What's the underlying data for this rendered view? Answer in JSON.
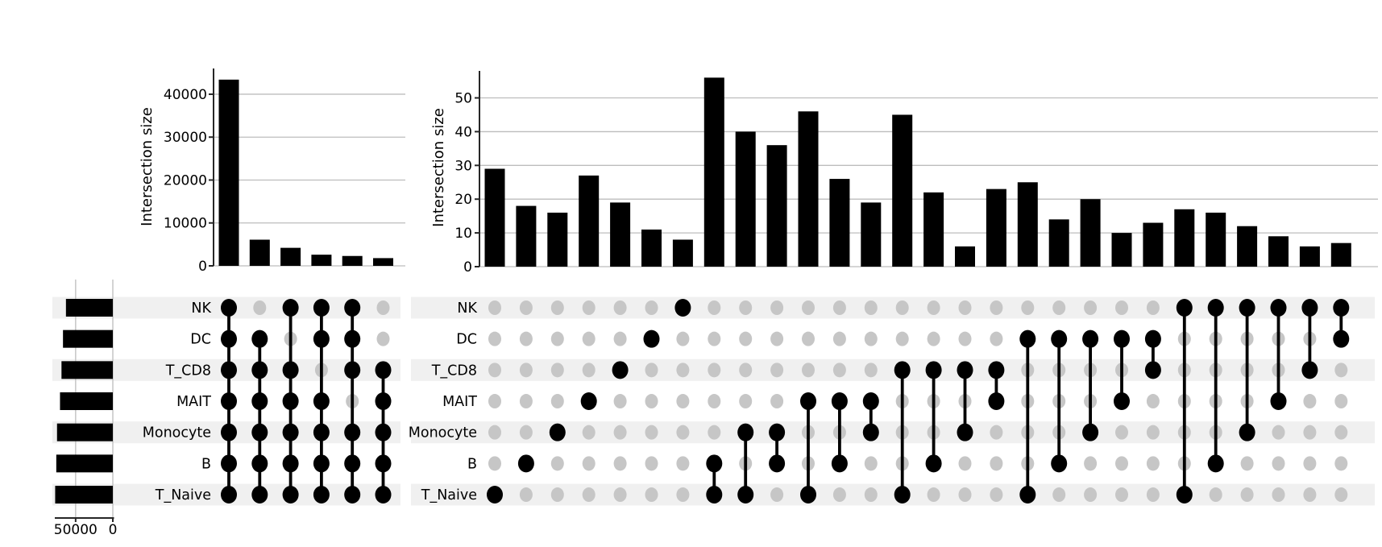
{
  "figure": {
    "description": "Two UpSet plots of immune cell type intersections",
    "left_ylabel": "Intersection size",
    "right_ylabel": "Intersection size"
  },
  "colors": {
    "bar": "#000000",
    "dot_active": "#000000",
    "dot_inactive": "#c6c6c6",
    "band": "#f0f0f0",
    "grid": "#bdbdbd",
    "axis": "#262626",
    "text": "#000000",
    "background": "#ffffff"
  },
  "chart_data": [
    {
      "type": "bar",
      "variant": "upset",
      "title": "",
      "ylabel": "Intersection size",
      "grid": true,
      "sets": [
        "NK",
        "DC",
        "T_CD8",
        "MAIT",
        "Monocyte",
        "B",
        "T_Naive"
      ],
      "set_sizes": {
        "NK": 63000,
        "DC": 67000,
        "T_CD8": 69000,
        "MAIT": 71000,
        "Monocyte": 75000,
        "B": 76000,
        "T_Naive": 77500
      },
      "set_size_axis": {
        "ticks": [
          50000,
          0
        ],
        "max": 78000
      },
      "y_ticks": [
        0,
        10000,
        20000,
        30000,
        40000
      ],
      "ylim": [
        0,
        46000
      ],
      "intersections": [
        {
          "sets": [
            "NK",
            "DC",
            "T_CD8",
            "MAIT",
            "Monocyte",
            "B",
            "T_Naive"
          ],
          "value": 43400
        },
        {
          "sets": [
            "DC",
            "T_CD8",
            "MAIT",
            "Monocyte",
            "B",
            "T_Naive"
          ],
          "value": 6100
        },
        {
          "sets": [
            "NK",
            "T_CD8",
            "MAIT",
            "Monocyte",
            "B",
            "T_Naive"
          ],
          "value": 4200
        },
        {
          "sets": [
            "NK",
            "DC",
            "MAIT",
            "Monocyte",
            "B",
            "T_Naive"
          ],
          "value": 2600
        },
        {
          "sets": [
            "NK",
            "DC",
            "T_CD8",
            "Monocyte",
            "B",
            "T_Naive"
          ],
          "value": 2300
        },
        {
          "sets": [
            "T_CD8",
            "MAIT",
            "Monocyte",
            "B",
            "T_Naive"
          ],
          "value": 1800
        }
      ]
    },
    {
      "type": "bar",
      "variant": "upset",
      "title": "",
      "ylabel": "Intersection size",
      "grid": true,
      "sets": [
        "NK",
        "DC",
        "T_CD8",
        "MAIT",
        "Monocyte",
        "B",
        "T_Naive"
      ],
      "set_sizes": null,
      "set_size_axis": null,
      "y_ticks": [
        0,
        10,
        20,
        30,
        40,
        50
      ],
      "ylim": [
        0,
        58
      ],
      "intersections": [
        {
          "sets": [
            "T_Naive"
          ],
          "value": 29
        },
        {
          "sets": [
            "B"
          ],
          "value": 18
        },
        {
          "sets": [
            "Monocyte"
          ],
          "value": 16
        },
        {
          "sets": [
            "MAIT"
          ],
          "value": 27
        },
        {
          "sets": [
            "T_CD8"
          ],
          "value": 19
        },
        {
          "sets": [
            "DC"
          ],
          "value": 11
        },
        {
          "sets": [
            "NK"
          ],
          "value": 8
        },
        {
          "sets": [
            "B",
            "T_Naive"
          ],
          "value": 56
        },
        {
          "sets": [
            "Monocyte",
            "T_Naive"
          ],
          "value": 40
        },
        {
          "sets": [
            "Monocyte",
            "B"
          ],
          "value": 36
        },
        {
          "sets": [
            "MAIT",
            "T_Naive"
          ],
          "value": 46
        },
        {
          "sets": [
            "MAIT",
            "B"
          ],
          "value": 26
        },
        {
          "sets": [
            "MAIT",
            "Monocyte"
          ],
          "value": 19
        },
        {
          "sets": [
            "T_CD8",
            "T_Naive"
          ],
          "value": 45
        },
        {
          "sets": [
            "T_CD8",
            "B"
          ],
          "value": 22
        },
        {
          "sets": [
            "T_CD8",
            "Monocyte"
          ],
          "value": 6
        },
        {
          "sets": [
            "T_CD8",
            "MAIT"
          ],
          "value": 23
        },
        {
          "sets": [
            "DC",
            "T_Naive"
          ],
          "value": 25
        },
        {
          "sets": [
            "DC",
            "B"
          ],
          "value": 14
        },
        {
          "sets": [
            "DC",
            "Monocyte"
          ],
          "value": 20
        },
        {
          "sets": [
            "DC",
            "MAIT"
          ],
          "value": 10
        },
        {
          "sets": [
            "DC",
            "T_CD8"
          ],
          "value": 13
        },
        {
          "sets": [
            "NK",
            "T_Naive"
          ],
          "value": 17
        },
        {
          "sets": [
            "NK",
            "B"
          ],
          "value": 16
        },
        {
          "sets": [
            "NK",
            "Monocyte"
          ],
          "value": 12
        },
        {
          "sets": [
            "NK",
            "MAIT"
          ],
          "value": 9
        },
        {
          "sets": [
            "NK",
            "T_CD8"
          ],
          "value": 6
        },
        {
          "sets": [
            "NK",
            "DC"
          ],
          "value": 7
        }
      ]
    }
  ]
}
